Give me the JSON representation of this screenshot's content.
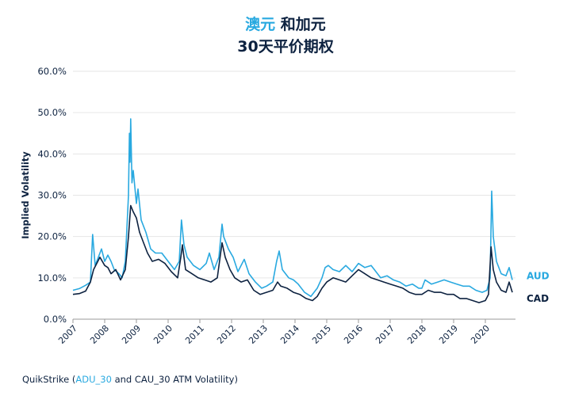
{
  "title": {
    "line1_accent": "澳元",
    "line1_rest": " 和加元",
    "line2": "30天平价期权"
  },
  "source": {
    "prefix": "QuikStrike (",
    "accent": "ADU_30",
    "suffix": " and CAU_30 ATM Volatility)"
  },
  "colors": {
    "aud": "#29a9e0",
    "cad": "#0d2240",
    "grid": "#e6e6e6",
    "axis": "#9a9a9a"
  },
  "chart_data": {
    "type": "line",
    "title": "澳元 和加元 30天平价期权",
    "ylabel": "Implied Volatility",
    "xlabel": "",
    "ylim": [
      0,
      60
    ],
    "y_ticks": [
      "0.0%",
      "10.0%",
      "20.0%",
      "30.0%",
      "40.0%",
      "50.0%",
      "60.0%"
    ],
    "x_ticks": [
      "2007",
      "2008",
      "2009",
      "2010",
      "2011",
      "2012",
      "2013",
      "2014",
      "2015",
      "2016",
      "2017",
      "2018",
      "2019",
      "2020"
    ],
    "xlim": [
      2007.0,
      2020.95
    ],
    "grid": true,
    "series": [
      {
        "name": "AUD",
        "color": "#29a9e0",
        "points": [
          [
            2007.0,
            7.0
          ],
          [
            2007.2,
            7.4
          ],
          [
            2007.4,
            8.2
          ],
          [
            2007.55,
            9.0
          ],
          [
            2007.62,
            20.5
          ],
          [
            2007.7,
            13.0
          ],
          [
            2007.8,
            15.0
          ],
          [
            2007.9,
            17.0
          ],
          [
            2008.0,
            14.0
          ],
          [
            2008.1,
            15.5
          ],
          [
            2008.2,
            14.0
          ],
          [
            2008.3,
            12.0
          ],
          [
            2008.45,
            11.0
          ],
          [
            2008.55,
            10.0
          ],
          [
            2008.65,
            14.0
          ],
          [
            2008.75,
            30.0
          ],
          [
            2008.78,
            45.0
          ],
          [
            2008.8,
            38.0
          ],
          [
            2008.82,
            48.5
          ],
          [
            2008.86,
            33.0
          ],
          [
            2008.9,
            36.0
          ],
          [
            2009.0,
            28.0
          ],
          [
            2009.05,
            31.5
          ],
          [
            2009.15,
            24.0
          ],
          [
            2009.3,
            21.0
          ],
          [
            2009.45,
            17.0
          ],
          [
            2009.6,
            16.0
          ],
          [
            2009.8,
            16.0
          ],
          [
            2010.0,
            14.0
          ],
          [
            2010.2,
            12.0
          ],
          [
            2010.35,
            14.0
          ],
          [
            2010.42,
            24.0
          ],
          [
            2010.5,
            18.0
          ],
          [
            2010.6,
            15.0
          ],
          [
            2010.8,
            13.0
          ],
          [
            2011.0,
            12.0
          ],
          [
            2011.2,
            13.5
          ],
          [
            2011.3,
            16.0
          ],
          [
            2011.45,
            12.0
          ],
          [
            2011.6,
            15.0
          ],
          [
            2011.7,
            23.0
          ],
          [
            2011.75,
            20.0
          ],
          [
            2011.9,
            17.0
          ],
          [
            2012.05,
            15.0
          ],
          [
            2012.2,
            11.5
          ],
          [
            2012.4,
            14.5
          ],
          [
            2012.55,
            11.0
          ],
          [
            2012.75,
            9.0
          ],
          [
            2012.95,
            7.5
          ],
          [
            2013.1,
            8.0
          ],
          [
            2013.3,
            9.0
          ],
          [
            2013.42,
            14.0
          ],
          [
            2013.5,
            16.5
          ],
          [
            2013.6,
            12.0
          ],
          [
            2013.8,
            10.0
          ],
          [
            2013.95,
            9.5
          ],
          [
            2014.1,
            8.5
          ],
          [
            2014.3,
            6.5
          ],
          [
            2014.5,
            5.5
          ],
          [
            2014.7,
            7.5
          ],
          [
            2014.85,
            10.0
          ],
          [
            2014.95,
            12.5
          ],
          [
            2015.05,
            13.0
          ],
          [
            2015.2,
            12.0
          ],
          [
            2015.4,
            11.5
          ],
          [
            2015.6,
            13.0
          ],
          [
            2015.8,
            11.5
          ],
          [
            2016.0,
            13.5
          ],
          [
            2016.2,
            12.5
          ],
          [
            2016.4,
            13.0
          ],
          [
            2016.5,
            12.0
          ],
          [
            2016.7,
            10.0
          ],
          [
            2016.9,
            10.5
          ],
          [
            2017.1,
            9.5
          ],
          [
            2017.3,
            9.0
          ],
          [
            2017.5,
            8.0
          ],
          [
            2017.7,
            8.5
          ],
          [
            2017.9,
            7.5
          ],
          [
            2018.0,
            7.5
          ],
          [
            2018.1,
            9.5
          ],
          [
            2018.3,
            8.5
          ],
          [
            2018.5,
            9.0
          ],
          [
            2018.7,
            9.5
          ],
          [
            2018.9,
            9.0
          ],
          [
            2019.1,
            8.5
          ],
          [
            2019.3,
            8.0
          ],
          [
            2019.5,
            8.0
          ],
          [
            2019.7,
            7.0
          ],
          [
            2019.9,
            6.5
          ],
          [
            2020.05,
            7.0
          ],
          [
            2020.15,
            10.0
          ],
          [
            2020.2,
            31.0
          ],
          [
            2020.25,
            20.0
          ],
          [
            2020.35,
            14.0
          ],
          [
            2020.5,
            11.0
          ],
          [
            2020.65,
            10.5
          ],
          [
            2020.75,
            12.5
          ],
          [
            2020.85,
            9.5
          ]
        ]
      },
      {
        "name": "CAD",
        "color": "#0d2240",
        "points": [
          [
            2007.0,
            6.0
          ],
          [
            2007.2,
            6.2
          ],
          [
            2007.4,
            6.8
          ],
          [
            2007.55,
            9.0
          ],
          [
            2007.65,
            12.0
          ],
          [
            2007.75,
            13.5
          ],
          [
            2007.85,
            15.0
          ],
          [
            2008.0,
            13.0
          ],
          [
            2008.1,
            12.5
          ],
          [
            2008.2,
            11.0
          ],
          [
            2008.35,
            12.0
          ],
          [
            2008.5,
            9.5
          ],
          [
            2008.65,
            12.0
          ],
          [
            2008.75,
            20.0
          ],
          [
            2008.82,
            27.5
          ],
          [
            2008.9,
            26.0
          ],
          [
            2009.0,
            24.5
          ],
          [
            2009.1,
            21.0
          ],
          [
            2009.2,
            19.0
          ],
          [
            2009.35,
            16.0
          ],
          [
            2009.5,
            14.0
          ],
          [
            2009.7,
            14.5
          ],
          [
            2009.9,
            13.5
          ],
          [
            2010.1,
            11.5
          ],
          [
            2010.3,
            10.0
          ],
          [
            2010.4,
            15.0
          ],
          [
            2010.45,
            18.0
          ],
          [
            2010.55,
            12.0
          ],
          [
            2010.75,
            11.0
          ],
          [
            2010.95,
            10.0
          ],
          [
            2011.15,
            9.5
          ],
          [
            2011.35,
            9.0
          ],
          [
            2011.55,
            10.0
          ],
          [
            2011.7,
            18.5
          ],
          [
            2011.8,
            15.0
          ],
          [
            2011.95,
            12.0
          ],
          [
            2012.1,
            10.0
          ],
          [
            2012.3,
            9.0
          ],
          [
            2012.5,
            9.5
          ],
          [
            2012.7,
            7.0
          ],
          [
            2012.9,
            6.0
          ],
          [
            2013.1,
            6.5
          ],
          [
            2013.3,
            7.0
          ],
          [
            2013.45,
            9.0
          ],
          [
            2013.55,
            8.0
          ],
          [
            2013.75,
            7.5
          ],
          [
            2013.95,
            6.5
          ],
          [
            2014.15,
            6.0
          ],
          [
            2014.35,
            5.0
          ],
          [
            2014.55,
            4.5
          ],
          [
            2014.7,
            5.5
          ],
          [
            2014.85,
            7.5
          ],
          [
            2015.0,
            9.0
          ],
          [
            2015.2,
            10.0
          ],
          [
            2015.4,
            9.5
          ],
          [
            2015.6,
            9.0
          ],
          [
            2015.8,
            10.5
          ],
          [
            2016.0,
            12.0
          ],
          [
            2016.2,
            11.0
          ],
          [
            2016.4,
            10.0
          ],
          [
            2016.6,
            9.5
          ],
          [
            2016.8,
            9.0
          ],
          [
            2017.0,
            8.5
          ],
          [
            2017.2,
            8.0
          ],
          [
            2017.4,
            7.5
          ],
          [
            2017.6,
            6.5
          ],
          [
            2017.8,
            6.0
          ],
          [
            2018.0,
            6.0
          ],
          [
            2018.2,
            7.0
          ],
          [
            2018.4,
            6.5
          ],
          [
            2018.6,
            6.5
          ],
          [
            2018.8,
            6.0
          ],
          [
            2019.0,
            6.0
          ],
          [
            2019.2,
            5.0
          ],
          [
            2019.4,
            5.0
          ],
          [
            2019.6,
            4.5
          ],
          [
            2019.8,
            4.0
          ],
          [
            2020.0,
            4.5
          ],
          [
            2020.1,
            6.0
          ],
          [
            2020.18,
            17.5
          ],
          [
            2020.25,
            12.0
          ],
          [
            2020.35,
            9.0
          ],
          [
            2020.5,
            7.0
          ],
          [
            2020.65,
            6.5
          ],
          [
            2020.75,
            9.0
          ],
          [
            2020.85,
            6.5
          ]
        ]
      }
    ]
  }
}
